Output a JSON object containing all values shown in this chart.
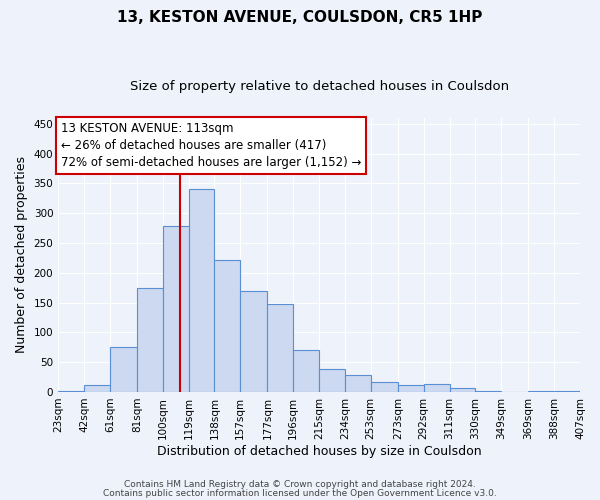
{
  "title": "13, KESTON AVENUE, COULSDON, CR5 1HP",
  "subtitle": "Size of property relative to detached houses in Coulsdon",
  "xlabel": "Distribution of detached houses by size in Coulsdon",
  "ylabel": "Number of detached properties",
  "bin_edges": [
    23,
    42,
    61,
    81,
    100,
    119,
    138,
    157,
    177,
    196,
    215,
    234,
    253,
    273,
    292,
    311,
    330,
    349,
    369,
    388,
    407
  ],
  "bar_heights": [
    2,
    12,
    75,
    175,
    278,
    340,
    222,
    170,
    147,
    70,
    38,
    29,
    17,
    12,
    14,
    6,
    2,
    0,
    2,
    2
  ],
  "bar_facecolor": "#ccd9f0",
  "bar_edgecolor": "#5b8fd4",
  "property_line_x": 113,
  "property_line_color": "#cc0000",
  "annotation_line1": "13 KESTON AVENUE: 113sqm",
  "annotation_line2": "← 26% of detached houses are smaller (417)",
  "annotation_line3": "72% of semi-detached houses are larger (1,152) →",
  "annotation_box_edgecolor": "#cc0000",
  "annotation_box_facecolor": "#ffffff",
  "ylim": [
    0,
    460
  ],
  "yticks": [
    0,
    50,
    100,
    150,
    200,
    250,
    300,
    350,
    400,
    450
  ],
  "background_color": "#eef2fa",
  "grid_color": "#ffffff",
  "title_fontsize": 11,
  "subtitle_fontsize": 9.5,
  "axis_label_fontsize": 9,
  "tick_fontsize": 7.5,
  "annotation_fontsize": 8.5,
  "footnote1": "Contains HM Land Registry data © Crown copyright and database right 2024.",
  "footnote2": "Contains public sector information licensed under the Open Government Licence v3.0."
}
